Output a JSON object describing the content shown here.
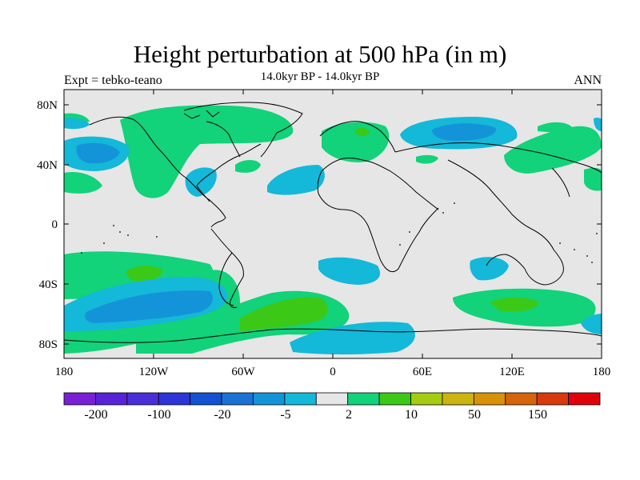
{
  "title": "Height perturbation at 500 hPa (in m)",
  "left_label": "Expt = tebko-teano",
  "center_label": "14.0kyr BP - 14.0kyr BP",
  "right_label": "ANN",
  "map": {
    "lat_ticks": [
      "80N",
      "40N",
      "0",
      "40S",
      "80S"
    ],
    "lon_ticks": [
      "180",
      "120W",
      "60W",
      "0",
      "60E",
      "120E",
      "180"
    ],
    "ocean_color": "#e6e6e6"
  },
  "colorbar": {
    "colors": [
      "#7a1fd6",
      "#5a22d8",
      "#4a2fd8",
      "#2e35d6",
      "#1452d4",
      "#1a72d6",
      "#1494d8",
      "#14b8d8",
      "#e6e6e6",
      "#12d27a",
      "#3cc816",
      "#a4cc10",
      "#ccb410",
      "#d8920a",
      "#d6640a",
      "#d83a0e",
      "#e0000c"
    ],
    "labels": [
      "-200",
      "-100",
      "-20",
      "-5",
      "2",
      "10",
      "50",
      "150"
    ]
  }
}
